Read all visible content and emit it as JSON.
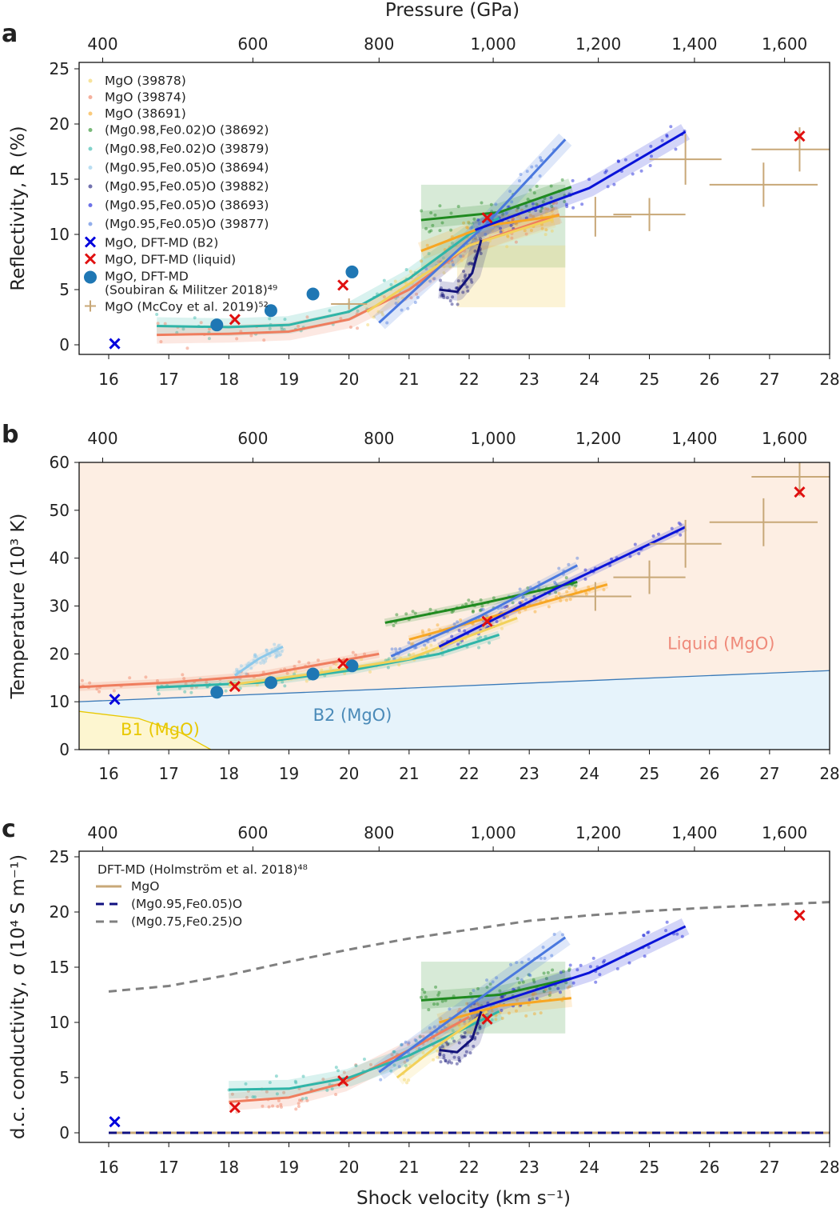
{
  "figure": {
    "panel_letters": [
      "a",
      "b",
      "c"
    ],
    "top_axis_label": "Pressure (GPa)",
    "bottom_axis_label": "Shock velocity (km s⁻¹)"
  },
  "series_colors": {
    "39878": "#f2d15a",
    "39874": "#ef7d5e",
    "38691": "#f7a623",
    "38692": "#1f8a1f",
    "39879": "#2fb5a8",
    "38694": "#8cc8ea",
    "39882": "#14147a",
    "38693": "#0a14d8",
    "39877": "#4a78de",
    "dft_b2": "#0000dd",
    "dft_liquid": "#e01010",
    "soubiran": "#1f77b4",
    "mccoy": "#c8a878"
  },
  "chart_data": [
    {
      "type": "scatter",
      "panel": "a",
      "ylabel": "Reflectivity, R (%)",
      "xlim": [
        15.5,
        28
      ],
      "ylim": [
        0,
        25
      ],
      "x_ticks": [
        "16",
        "17",
        "18",
        "19",
        "20",
        "21",
        "22",
        "23",
        "24",
        "25",
        "26",
        "27",
        "28"
      ],
      "y_ticks": [
        "0",
        "5",
        "10",
        "15",
        "20",
        "25"
      ],
      "top_ticks": [
        {
          "label": "400",
          "x": 15.9
        },
        {
          "label": "600",
          "x": 18.4
        },
        {
          "label": "800",
          "x": 20.5
        },
        {
          "label": "1,000",
          "x": 22.4
        },
        {
          "label": "1,200",
          "x": 24.15
        },
        {
          "label": "1,400",
          "x": 25.75
        },
        {
          "label": "1,600",
          "x": 27.25
        }
      ],
      "legend": [
        {
          "label": "MgO (39878)",
          "key": "39878",
          "marker": "dot"
        },
        {
          "label": "MgO (39874)",
          "key": "39874",
          "marker": "dot"
        },
        {
          "label": "MgO (38691)",
          "key": "38691",
          "marker": "dot"
        },
        {
          "label": "(Mg0.98,Fe0.02)O (38692)",
          "key": "38692",
          "marker": "dot"
        },
        {
          "label": "(Mg0.98,Fe0.02)O (39879)",
          "key": "39879",
          "marker": "dot"
        },
        {
          "label": "(Mg0.95,Fe0.05)O (38694)",
          "key": "38694",
          "marker": "dot"
        },
        {
          "label": "(Mg0.95,Fe0.05)O (39882)",
          "key": "39882",
          "marker": "dot"
        },
        {
          "label": "(Mg0.95,Fe0.05)O (38693)",
          "key": "38693",
          "marker": "dot"
        },
        {
          "label": "(Mg0.95,Fe0.05)O (39877)",
          "key": "39877",
          "marker": "dot"
        },
        {
          "label": "MgO, DFT-MD (B2)",
          "key": "dft_b2",
          "marker": "x"
        },
        {
          "label": "MgO, DFT-MD (liquid)",
          "key": "dft_liquid",
          "marker": "x"
        },
        {
          "label": "MgO, DFT-MD",
          "label2": "(Soubiran & Militzer 2018)⁴⁹",
          "key": "soubiran",
          "marker": "circle"
        },
        {
          "label": "MgO (McCoy et al. 2019)⁵²",
          "key": "mccoy",
          "marker": "plus"
        }
      ],
      "fits": [
        {
          "key": "39879",
          "x": [
            16.8,
            18,
            19,
            20,
            21,
            22,
            22.5
          ],
          "y": [
            1.7,
            1.6,
            1.8,
            3,
            6,
            10,
            11.5
          ]
        },
        {
          "key": "39874",
          "x": [
            16.8,
            18,
            19,
            20,
            21,
            22,
            23.5
          ],
          "y": [
            0.9,
            1,
            1.2,
            2.3,
            5,
            9,
            11.8
          ]
        },
        {
          "key": "39878",
          "x": [
            20.3,
            21,
            22,
            23.4
          ],
          "y": [
            3,
            5.5,
            9,
            11.4
          ]
        },
        {
          "key": "38691",
          "x": [
            21.2,
            22.3,
            23.5
          ],
          "y": [
            8.5,
            10.8,
            11.7
          ]
        },
        {
          "key": "38692",
          "x": [
            21.2,
            22.5,
            23.7
          ],
          "y": [
            11.3,
            12,
            14.3
          ]
        },
        {
          "key": "39877",
          "x": [
            20.5,
            22.3,
            23.6
          ],
          "y": [
            2,
            11,
            18.6
          ]
        },
        {
          "key": "39882",
          "x": [
            21.5,
            21.8,
            22.05,
            22.2
          ],
          "y": [
            5,
            4.8,
            6.5,
            9.5
          ]
        },
        {
          "key": "38693",
          "x": [
            22.1,
            24,
            25.6
          ],
          "y": [
            10.4,
            14.2,
            19.3
          ]
        }
      ],
      "dft_b2": [
        {
          "x": 16.1,
          "y": 0.1
        }
      ],
      "dft_liquid": [
        {
          "x": 18.1,
          "y": 2.3
        },
        {
          "x": 19.9,
          "y": 5.4
        },
        {
          "x": 22.3,
          "y": 11.5
        },
        {
          "x": 27.5,
          "y": 18.9
        }
      ],
      "soubiran": [
        {
          "x": 17.8,
          "y": 1.8
        },
        {
          "x": 18.7,
          "y": 3.1
        },
        {
          "x": 19.4,
          "y": 4.6
        },
        {
          "x": 20.05,
          "y": 6.6
        }
      ],
      "mccoy": [
        {
          "x": 20,
          "y": 3.7,
          "xe": 0.3,
          "ye": 0.5
        },
        {
          "x": 24.1,
          "y": 11.6,
          "xe": 0.6,
          "ye": 1.8
        },
        {
          "x": 25,
          "y": 11.8,
          "xe": 0.6,
          "ye": 1.5
        },
        {
          "x": 25.6,
          "y": 16.8,
          "xe": 0.6,
          "ye": 2.3
        },
        {
          "x": 26.9,
          "y": 14.5,
          "xe": 0.9,
          "ye": 2
        },
        {
          "x": 27.5,
          "y": 17.7,
          "xe": 0.8,
          "ye": 2
        }
      ]
    },
    {
      "type": "scatter",
      "panel": "b",
      "ylabel": "Temperature (10³ K)",
      "xlim": [
        15.5,
        28
      ],
      "ylim": [
        0,
        60
      ],
      "x_ticks": [
        "16",
        "17",
        "18",
        "19",
        "20",
        "21",
        "22",
        "23",
        "24",
        "25",
        "26",
        "27",
        "28"
      ],
      "y_ticks": [
        "0",
        "10",
        "20",
        "30",
        "40",
        "50",
        "60"
      ],
      "top_ticks": [
        {
          "label": "400",
          "x": 15.9
        },
        {
          "label": "600",
          "x": 18.4
        },
        {
          "label": "800",
          "x": 20.5
        },
        {
          "label": "1,000",
          "x": 22.4
        },
        {
          "label": "1,200",
          "x": 24.15
        },
        {
          "label": "1,400",
          "x": 25.75
        },
        {
          "label": "1,600",
          "x": 27.25
        }
      ],
      "phase_labels": [
        {
          "text": "Liquid (MgO)",
          "x": 25.3,
          "y": 21,
          "color": "#ef8a7a"
        },
        {
          "text": "B2 (MgO)",
          "x": 19.4,
          "y": 6,
          "color": "#4a8ab8"
        },
        {
          "text": "B1 (MgO)",
          "x": 16.2,
          "y": 3,
          "color": "#e8c800"
        }
      ],
      "phase_colors": {
        "liquid": "#fdeee3",
        "b2": "#e6f3fb",
        "b1": "#fdf6d0",
        "b2_liquid_line": "#3a7ab8",
        "b1_line": "#e8c800"
      },
      "b2_liquid_boundary": {
        "x": [
          15.5,
          28
        ],
        "y": [
          10,
          16.5
        ]
      },
      "b1_boundary": {
        "x": [
          15.5,
          16.5,
          17.2,
          17.7
        ],
        "y": [
          8,
          6.5,
          3.5,
          0
        ]
      },
      "fits": [
        {
          "key": "39874",
          "x": [
            15.4,
            17,
            18.5,
            20.5
          ],
          "y": [
            13,
            14,
            15.5,
            20
          ]
        },
        {
          "key": "39879",
          "x": [
            16.8,
            18.5,
            20,
            21.5,
            22.5
          ],
          "y": [
            13,
            14,
            16.5,
            20,
            24
          ]
        },
        {
          "key": "38694",
          "x": [
            18.1,
            18.5,
            18.9
          ],
          "y": [
            15.5,
            19,
            21.5
          ]
        },
        {
          "key": "39878",
          "x": [
            18,
            19.5,
            21,
            22.8
          ],
          "y": [
            13.5,
            16,
            19,
            27.5
          ]
        },
        {
          "key": "38692",
          "x": [
            20.6,
            22.2,
            23.8
          ],
          "y": [
            26.5,
            30.5,
            35
          ]
        },
        {
          "key": "38691",
          "x": [
            21,
            22.6,
            24.3
          ],
          "y": [
            23,
            28.5,
            34.5
          ]
        },
        {
          "key": "39877",
          "x": [
            20.7,
            22.2,
            23.8
          ],
          "y": [
            19.5,
            28,
            38.5
          ]
        },
        {
          "key": "38693",
          "x": [
            21.5,
            23.5,
            25.6
          ],
          "y": [
            21.5,
            34,
            46.5
          ]
        }
      ],
      "dft_b2": [
        {
          "x": 16.1,
          "y": 10.5
        }
      ],
      "dft_liquid": [
        {
          "x": 18.1,
          "y": 13.2
        },
        {
          "x": 19.9,
          "y": 18
        },
        {
          "x": 22.3,
          "y": 26.8
        },
        {
          "x": 27.5,
          "y": 53.8
        }
      ],
      "soubiran": [
        {
          "x": 17.8,
          "y": 12
        },
        {
          "x": 18.7,
          "y": 14
        },
        {
          "x": 19.4,
          "y": 15.8
        },
        {
          "x": 20.05,
          "y": 17.5
        }
      ],
      "mccoy": [
        {
          "x": 24.1,
          "y": 32,
          "xe": 0.6,
          "ye": 3
        },
        {
          "x": 25,
          "y": 36,
          "xe": 0.6,
          "ye": 3.5
        },
        {
          "x": 25.6,
          "y": 43,
          "xe": 0.6,
          "ye": 5
        },
        {
          "x": 26.9,
          "y": 47.5,
          "xe": 0.9,
          "ye": 5
        },
        {
          "x": 27.5,
          "y": 57,
          "xe": 0.8,
          "ye": 4
        }
      ]
    },
    {
      "type": "line",
      "panel": "c",
      "ylabel": "d.c. conductivity, σ (10⁴ S m⁻¹)",
      "xlabel": "Shock velocity (km s⁻¹)",
      "xlim": [
        15.5,
        28
      ],
      "ylim": [
        0,
        25
      ],
      "x_ticks": [
        "16",
        "17",
        "18",
        "19",
        "20",
        "21",
        "22",
        "23",
        "24",
        "25",
        "26",
        "27",
        "28"
      ],
      "y_ticks": [
        "0",
        "5",
        "10",
        "15",
        "20",
        "25"
      ],
      "top_ticks": [
        {
          "label": "400",
          "x": 15.9
        },
        {
          "label": "600",
          "x": 18.4
        },
        {
          "label": "800",
          "x": 20.5
        },
        {
          "label": "1,000",
          "x": 22.4
        },
        {
          "label": "1,200",
          "x": 24.15
        },
        {
          "label": "1,400",
          "x": 25.75
        },
        {
          "label": "1,600",
          "x": 27.25
        }
      ],
      "legend_title": "DFT-MD (Holmström et al. 2018)⁴⁸",
      "legend": [
        {
          "label": "MgO",
          "color": "#c8a878",
          "dash": false
        },
        {
          "label": "(Mg0.95,Fe0.05)O",
          "color": "#101080",
          "dash": true
        },
        {
          "label": "(Mg0.75,Fe0.25)O",
          "color": "#808080",
          "dash": true
        }
      ],
      "dft_curves": [
        {
          "label": "MgO",
          "x": [
            16,
            28
          ],
          "y": [
            0,
            0
          ]
        },
        {
          "label": "(Mg0.95,Fe0.05)O",
          "x": [
            16,
            28
          ],
          "y": [
            0,
            0
          ]
        },
        {
          "label": "(Mg0.75,Fe0.25)O",
          "x": [
            16,
            17,
            18,
            19,
            20,
            21,
            22,
            23,
            24,
            25,
            26,
            28
          ],
          "y": [
            12.8,
            13.3,
            14.3,
            15.5,
            16.6,
            17.6,
            18.4,
            19.2,
            19.7,
            20.1,
            20.4,
            20.9
          ]
        }
      ],
      "fits": [
        {
          "key": "39874",
          "x": [
            18,
            19,
            19.9,
            21,
            22
          ],
          "y": [
            2.8,
            3.2,
            4.5,
            7.5,
            10.5
          ]
        },
        {
          "key": "39879",
          "x": [
            18,
            19,
            20,
            21,
            22.5
          ],
          "y": [
            3.9,
            4,
            5,
            7,
            11
          ]
        },
        {
          "key": "39878",
          "x": [
            20.8,
            21.5,
            22.3
          ],
          "y": [
            5,
            8,
            11
          ]
        },
        {
          "key": "38692",
          "x": [
            21.2,
            22.5,
            23.7
          ],
          "y": [
            12,
            12.5,
            14
          ]
        },
        {
          "key": "38691",
          "x": [
            21.5,
            22.5,
            23.7
          ],
          "y": [
            10,
            11.5,
            12.2
          ]
        },
        {
          "key": "39877",
          "x": [
            20.5,
            22,
            23.6
          ],
          "y": [
            5.5,
            11.5,
            17.7
          ]
        },
        {
          "key": "39882",
          "x": [
            21.5,
            21.8,
            22.05,
            22.2
          ],
          "y": [
            7.5,
            7.3,
            8.5,
            11
          ]
        },
        {
          "key": "38693",
          "x": [
            22,
            24,
            25.6
          ],
          "y": [
            11,
            14.5,
            18.7
          ]
        }
      ],
      "dft_b2": [
        {
          "x": 16.1,
          "y": 1.0
        }
      ],
      "dft_liquid": [
        {
          "x": 18.1,
          "y": 2.3
        },
        {
          "x": 19.9,
          "y": 4.7
        },
        {
          "x": 22.3,
          "y": 10.3
        },
        {
          "x": 27.5,
          "y": 19.7
        }
      ]
    }
  ]
}
